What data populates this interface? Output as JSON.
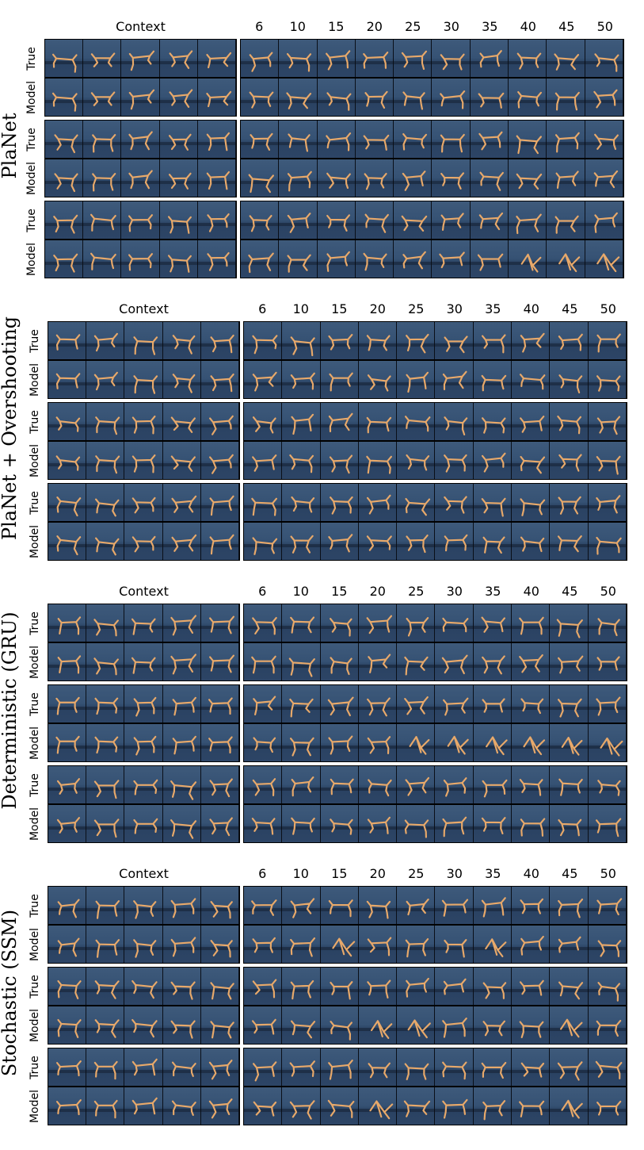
{
  "column_headers": {
    "context": "Context",
    "steps": [
      "6",
      "10",
      "15",
      "20",
      "25",
      "30",
      "35",
      "40",
      "45",
      "50"
    ]
  },
  "row_labels": [
    "True",
    "Model"
  ],
  "methods": [
    {
      "name": "PlaNet"
    },
    {
      "name": "PlaNet + Overshooting"
    },
    {
      "name": "Deterministic (GRU)"
    },
    {
      "name": "Stochastic (SSM)"
    }
  ],
  "colors": {
    "background": "#3a5677",
    "walker": "#e8a96a",
    "border": "#000000"
  }
}
